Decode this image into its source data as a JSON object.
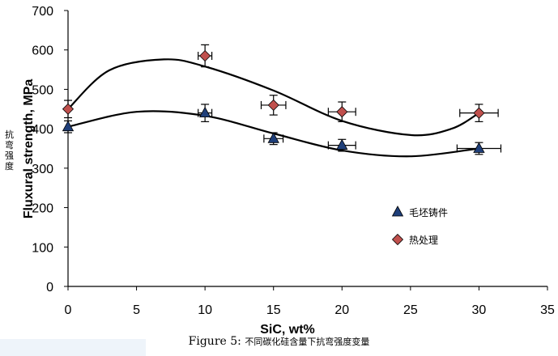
{
  "chart_data": {
    "type": "scatter",
    "xlabel": "SiC, wt%",
    "ylabel": "Fluxural strength, MPa",
    "ylabel_cn": "抗弯强度",
    "xlim": [
      0,
      35
    ],
    "ylim": [
      0,
      700
    ],
    "xticks": [
      0,
      5,
      10,
      15,
      20,
      25,
      30,
      35
    ],
    "yticks": [
      0,
      100,
      200,
      300,
      400,
      500,
      600,
      700
    ],
    "grid": false,
    "legend_position": "right-middle",
    "series": [
      {
        "name": "毛坯铸件",
        "marker": "triangle",
        "color": "#1f3f7a",
        "x": [
          0,
          10,
          15,
          20,
          30
        ],
        "y": [
          405,
          440,
          375,
          358,
          350
        ],
        "yerr": [
          15,
          22,
          15,
          15,
          15
        ],
        "xerr": [
          0,
          0.5,
          0.7,
          1,
          1.6
        ],
        "trend": [
          [
            0,
            405
          ],
          [
            5,
            443
          ],
          [
            10,
            433
          ],
          [
            15,
            388
          ],
          [
            20,
            345
          ],
          [
            25,
            330
          ],
          [
            30,
            350
          ]
        ]
      },
      {
        "name": "热处理",
        "marker": "diamond",
        "color": "#c0504d",
        "x": [
          0,
          10,
          15,
          20,
          30
        ],
        "y": [
          450,
          585,
          460,
          443,
          440
        ],
        "yerr": [
          22,
          28,
          25,
          25,
          22
        ],
        "xerr": [
          0,
          0.5,
          0.9,
          1,
          1.4
        ],
        "trend": [
          [
            0,
            450
          ],
          [
            3,
            548
          ],
          [
            7,
            576
          ],
          [
            10,
            558
          ],
          [
            15,
            497
          ],
          [
            20,
            420
          ],
          [
            25,
            384
          ],
          [
            28,
            400
          ],
          [
            30,
            440
          ]
        ]
      }
    ]
  },
  "caption": {
    "figure": "Figure 5:",
    "text": "不同碳化硅含量下抗弯强度变量"
  }
}
